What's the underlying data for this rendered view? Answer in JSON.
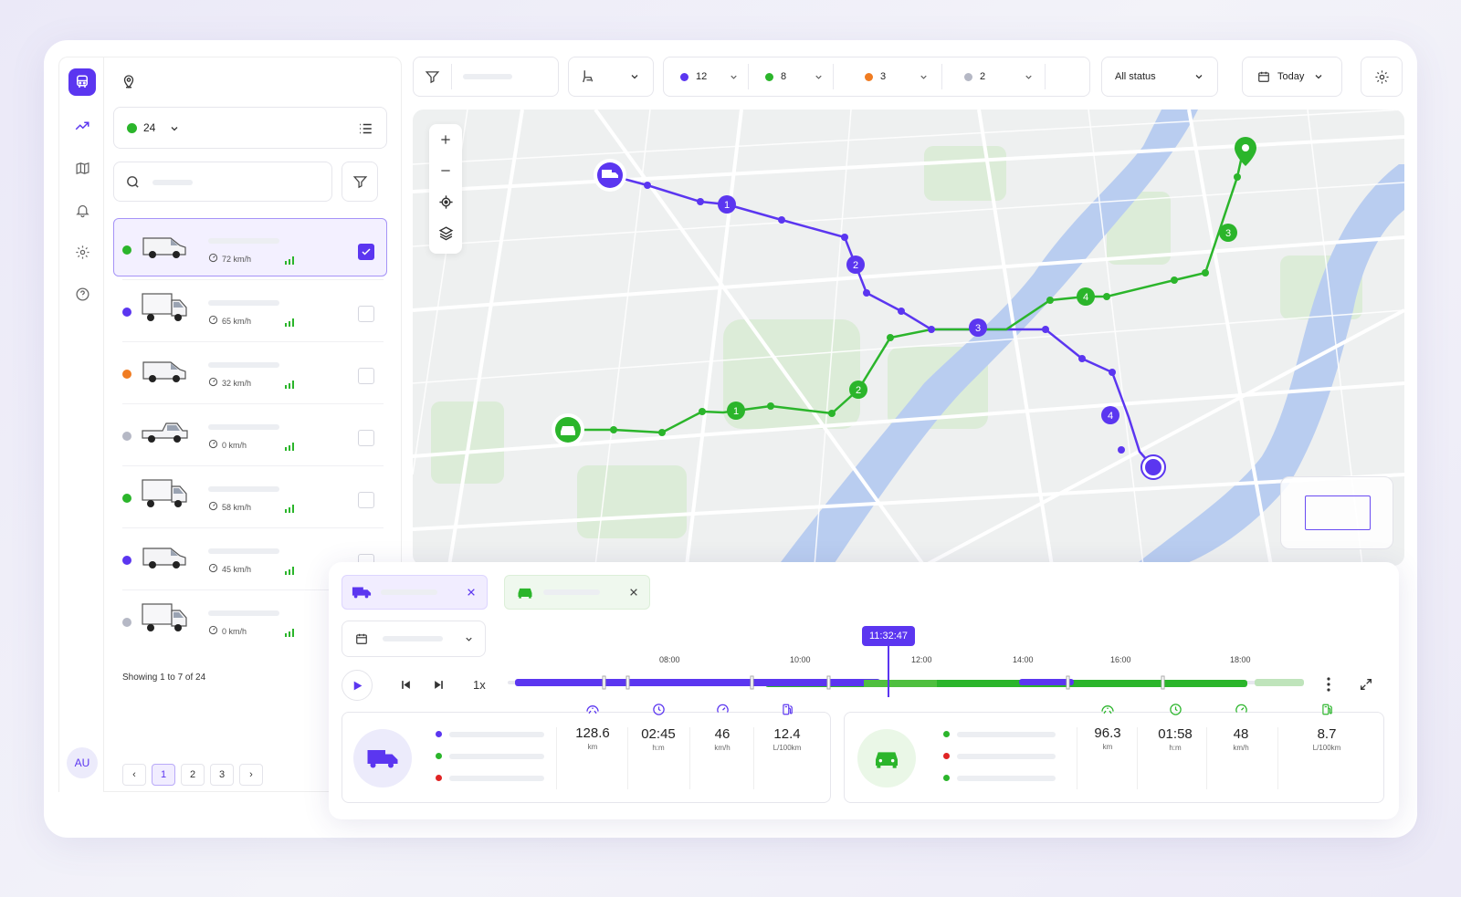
{
  "filters": {
    "status_groups": [
      {
        "count": "12",
        "color": "#5b36f0"
      },
      {
        "count": "8",
        "color": "#2bb52b"
      },
      {
        "count": "3",
        "color": "#f07c22"
      },
      {
        "count": "2",
        "color": "#b5b8c5"
      }
    ],
    "status_select": "All status",
    "date_select": "Today"
  },
  "sidebar": {
    "nav_icons": [
      "truck-logo-icon",
      "trending-icon",
      "map-icon",
      "bell-icon",
      "settings-icon",
      "help-icon"
    ],
    "avatar_initials": "AU"
  },
  "vehicle_list": {
    "active_count": "24",
    "vehicles": [
      {
        "speed": "72 km/h",
        "status_color": "#2bb52b",
        "type": "van",
        "selected": true
      },
      {
        "speed": "65 km/h",
        "status_color": "#5b36f0",
        "type": "box-truck",
        "selected": false
      },
      {
        "speed": "32 km/h",
        "status_color": "#f07c22",
        "type": "van",
        "selected": false
      },
      {
        "speed": "0 km/h",
        "status_color": "#b5b8c5",
        "type": "pickup",
        "selected": false
      },
      {
        "speed": "58 km/h",
        "status_color": "#2bb52b",
        "type": "box-truck",
        "selected": false
      },
      {
        "speed": "45 km/h",
        "status_color": "#5b36f0",
        "type": "van",
        "selected": false
      },
      {
        "speed": "0 km/h",
        "status_color": "#b5b8c5",
        "type": "box-truck",
        "selected": false
      }
    ],
    "showing_text": "Showing 1 to 7 of 24",
    "pages": [
      "1",
      "2",
      "3"
    ],
    "active_page": "1"
  },
  "map": {
    "purple_route_markers": [
      "1",
      "2",
      "3",
      "4"
    ],
    "green_route_markers": [
      "1",
      "2",
      "3",
      "4"
    ]
  },
  "playback": {
    "speed": "1x",
    "current_time": "11:32:47",
    "time_ticks": [
      "08:00",
      "10:00",
      "12:00",
      "14:00",
      "16:00",
      "18:00"
    ],
    "progress_fraction": 0.36
  },
  "vehicle_stats": [
    {
      "color": "#5b36f0",
      "legend_colors": [
        "#5b36f0",
        "#2bb52b",
        "#e02424"
      ],
      "stats": [
        {
          "icon": "distance-icon",
          "value": "128.6",
          "unit": "km"
        },
        {
          "icon": "clock-icon",
          "value": "02:45",
          "unit": "h:m"
        },
        {
          "icon": "speedometer-icon",
          "value": "46",
          "unit": "km/h"
        },
        {
          "icon": "fuel-icon",
          "value": "12.4",
          "unit": "L/100km"
        }
      ]
    },
    {
      "color": "#2bb52b",
      "legend_colors": [
        "#2bb52b",
        "#e02424",
        "#2bb52b"
      ],
      "stats": [
        {
          "icon": "distance-icon",
          "value": "96.3",
          "unit": "km"
        },
        {
          "icon": "clock-icon",
          "value": "01:58",
          "unit": "h:m"
        },
        {
          "icon": "speedometer-icon",
          "value": "48",
          "unit": "km/h"
        },
        {
          "icon": "fuel-icon",
          "value": "8.7",
          "unit": "L/100km"
        }
      ]
    }
  ]
}
